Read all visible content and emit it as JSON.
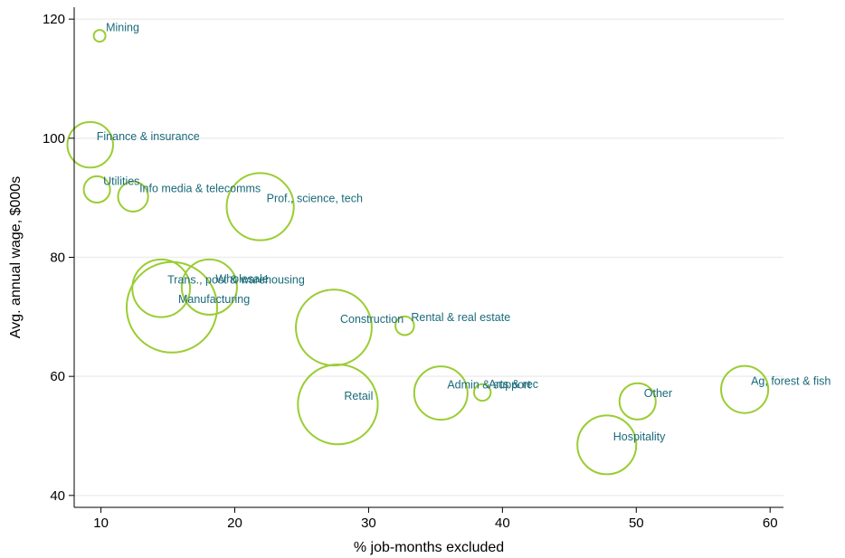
{
  "chart_data": {
    "type": "scatter",
    "subtype": "bubble",
    "title": "",
    "xlabel": "% job-months excluded",
    "ylabel": "Avg. annual wage, $000s",
    "xlim": [
      8,
      61
    ],
    "ylim": [
      38,
      122
    ],
    "xticks": [
      10,
      20,
      30,
      40,
      50,
      60
    ],
    "yticks": [
      40,
      60,
      80,
      100,
      120
    ],
    "grid": "horizontal",
    "legend": "none",
    "colors": {
      "marker": "#9acd32",
      "label": "#1a6a7a",
      "grid": "#eeeeee",
      "axis": "#000000"
    },
    "points": [
      {
        "label": "Mining",
        "x": 9.9,
        "y": 117.2,
        "size": 0.2
      },
      {
        "label": "Finance & insurance",
        "x": 9.2,
        "y": 98.9,
        "size": 3.0
      },
      {
        "label": "Utilities",
        "x": 9.7,
        "y": 91.4,
        "size": 1.0
      },
      {
        "label": "Info media & telecomms",
        "x": 12.4,
        "y": 90.2,
        "size": 1.3
      },
      {
        "label": "Prof., science, tech",
        "x": 21.9,
        "y": 88.5,
        "size": 6.5
      },
      {
        "label": "Trans., post & warehousing",
        "x": 14.5,
        "y": 74.8,
        "size": 4.8
      },
      {
        "label": "Wholesale",
        "x": 18.1,
        "y": 75.0,
        "size": 4.4
      },
      {
        "label": "Manufacturing",
        "x": 15.3,
        "y": 71.6,
        "size": 11.8
      },
      {
        "label": "Construction",
        "x": 27.4,
        "y": 68.2,
        "size": 8.3
      },
      {
        "label": "Rental & real estate",
        "x": 32.7,
        "y": 68.5,
        "size": 0.5
      },
      {
        "label": "Retail",
        "x": 27.7,
        "y": 55.3,
        "size": 9.2
      },
      {
        "label": "Admin & support",
        "x": 35.4,
        "y": 57.2,
        "size": 4.1
      },
      {
        "label": "Arts & rec",
        "x": 38.5,
        "y": 57.3,
        "size": 0.4
      },
      {
        "label": "Hospitality",
        "x": 47.8,
        "y": 48.5,
        "size": 5.0
      },
      {
        "label": "Other",
        "x": 50.1,
        "y": 55.8,
        "size": 1.9
      },
      {
        "label": "Ag, forest & fish",
        "x": 58.1,
        "y": 57.8,
        "size": 3.2
      }
    ]
  }
}
